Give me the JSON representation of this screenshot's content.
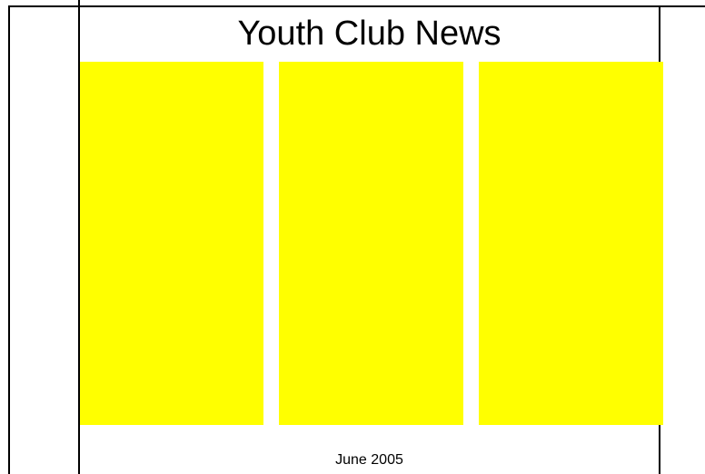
{
  "newsletter": {
    "title": "Youth Club News",
    "date": "June 2005",
    "column_color": "#ffff00",
    "columns": [
      {
        "text": ""
      },
      {
        "text": ""
      },
      {
        "text": ""
      }
    ]
  }
}
